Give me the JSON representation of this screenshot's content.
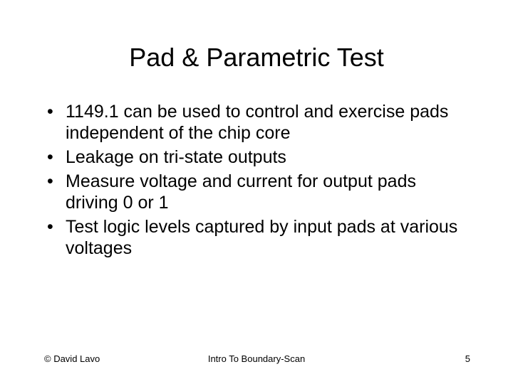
{
  "slide": {
    "title": "Pad & Parametric Test",
    "bullets": [
      "1149.1 can be used to control and exercise pads independent of the chip core",
      "Leakage on tri-state outputs",
      "Measure voltage and current for output pads driving 0 or 1",
      "Test logic levels captured by input pads at various voltages"
    ],
    "footer": {
      "left": "© David Lavo",
      "center": "Intro To Boundary-Scan",
      "page": "5"
    },
    "style": {
      "background_color": "#ffffff",
      "text_color": "#000000",
      "title_fontsize": 36,
      "body_fontsize": 25,
      "footer_fontsize": 13,
      "font_family": "Arial"
    }
  }
}
